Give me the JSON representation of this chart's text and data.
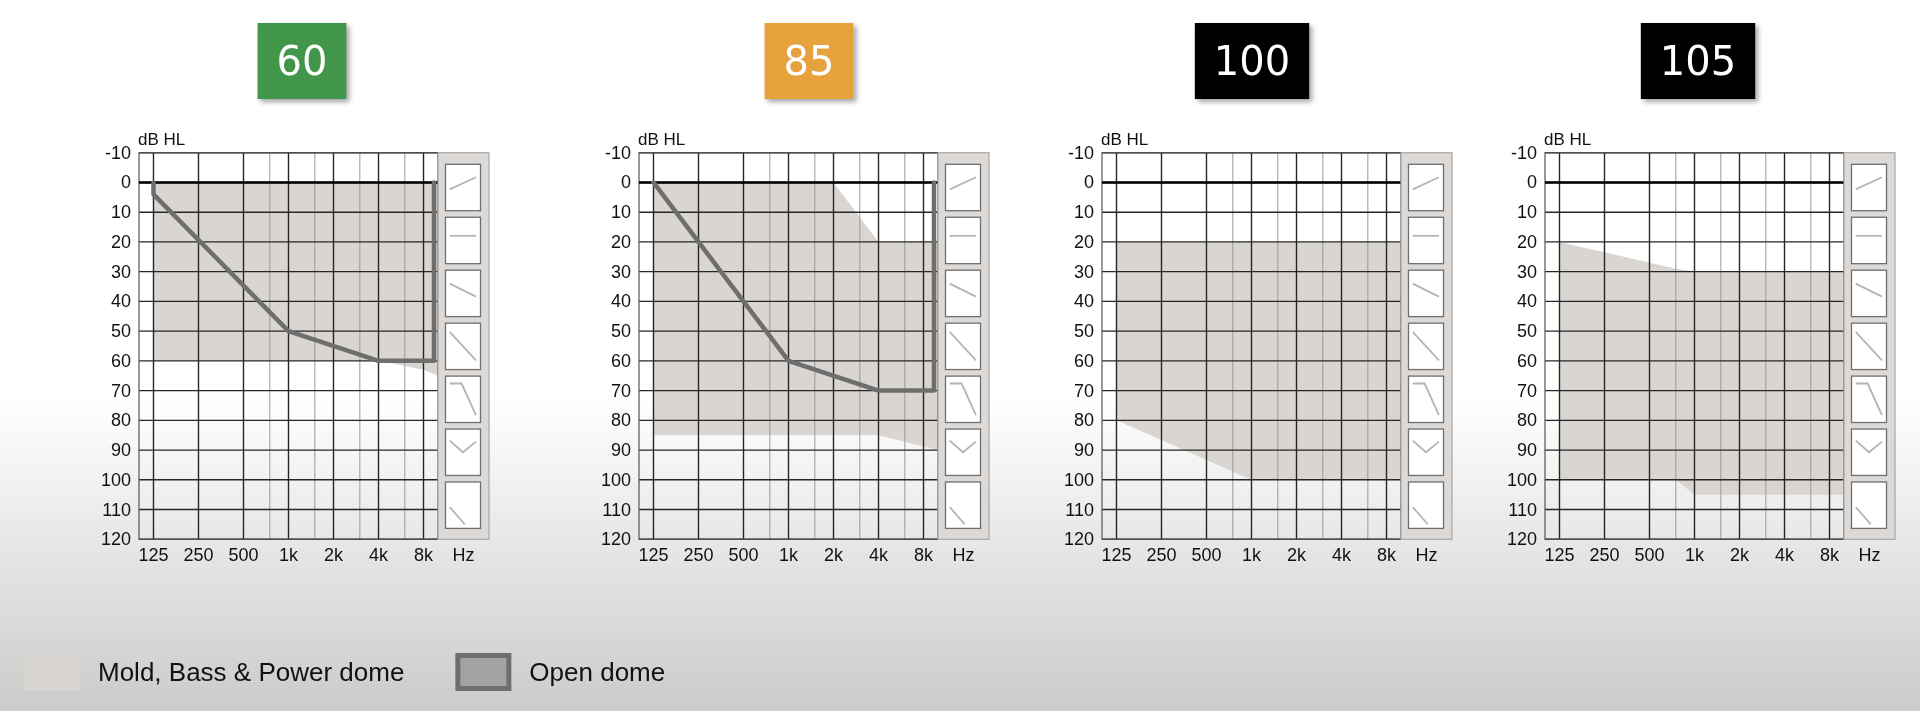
{
  "chart_data": [
    {
      "type": "area",
      "title": "60",
      "xlabel": "Hz",
      "ylabel": "dB HL",
      "log": "x",
      "xlim": [
        100,
        10000
      ],
      "xticks": [
        125,
        250,
        500,
        {
          "value": 750,
          "label": null
        },
        {
          "value": 1000,
          "label": "1k"
        },
        {
          "value": 1500,
          "label": null
        },
        {
          "value": 2000,
          "label": "2k"
        },
        {
          "value": 3000,
          "label": null
        },
        {
          "value": 4000,
          "label": "4k"
        },
        {
          "value": 6000,
          "label": null
        },
        {
          "value": 8000,
          "label": "8k"
        }
      ],
      "ylim": [
        120,
        -10
      ],
      "yticks": [
        -10,
        0,
        10,
        20,
        30,
        40,
        50,
        60,
        70,
        80,
        90,
        100,
        110,
        120
      ],
      "grid": true,
      "legend": "bottom",
      "ref_lines": [
        {
          "axis": "y",
          "value": 0,
          "color": "#000000"
        }
      ],
      "series": [
        {
          "name": "Mold, Bass & Power dome",
          "color": "#d9d5d1",
          "x": [
            125,
            4000,
            8000,
            10000
          ],
          "values": [
            null,
            null,
            null,
            null
          ],
          "lower": [
            0,
            0,
            0,
            0
          ],
          "upper": [
            60,
            60,
            63,
            65
          ]
        },
        {
          "name": "Open dome",
          "type": "line",
          "color": "#6e6e6e",
          "x": [
            125,
            125,
            1000,
            4000,
            9400,
            9400
          ],
          "values": [
            0,
            4,
            50,
            60,
            60,
            0
          ]
        }
      ]
    },
    {
      "type": "area",
      "title": "85",
      "xlabel": "Hz",
      "ylabel": "dB HL",
      "log": "x",
      "xlim": [
        100,
        10000
      ],
      "xticks": [
        125,
        250,
        500,
        {
          "value": 750,
          "label": null
        },
        {
          "value": 1000,
          "label": "1k"
        },
        {
          "value": 1500,
          "label": null
        },
        {
          "value": 2000,
          "label": "2k"
        },
        {
          "value": 3000,
          "label": null
        },
        {
          "value": 4000,
          "label": "4k"
        },
        {
          "value": 6000,
          "label": null
        },
        {
          "value": 8000,
          "label": "8k"
        }
      ],
      "ylim": [
        120,
        -10
      ],
      "yticks": [
        -10,
        0,
        10,
        20,
        30,
        40,
        50,
        60,
        70,
        80,
        90,
        100,
        110,
        120
      ],
      "grid": true,
      "ref_lines": [
        {
          "axis": "y",
          "value": 0,
          "color": "#000000"
        }
      ],
      "series": [
        {
          "color": "#d9d5d1",
          "x": [
            125,
            2000,
            4000,
            10000
          ],
          "values": [
            null,
            null,
            null,
            null
          ],
          "lower": [
            0,
            0,
            20,
            20
          ],
          "upper": [
            85,
            85,
            85,
            90
          ]
        },
        {
          "type": "line",
          "color": "#6e6e6e",
          "x": [
            125,
            1000,
            4000,
            9400,
            9400
          ],
          "values": [
            0,
            60,
            70,
            70,
            0
          ]
        }
      ]
    },
    {
      "type": "area",
      "title": "100",
      "xlabel": "Hz",
      "ylabel": "dB HL",
      "log": "x",
      "xlim": [
        100,
        10000
      ],
      "xticks": [
        125,
        250,
        500,
        {
          "value": 750,
          "label": null
        },
        {
          "value": 1000,
          "label": "1k"
        },
        {
          "value": 1500,
          "label": null
        },
        {
          "value": 2000,
          "label": "2k"
        },
        {
          "value": 3000,
          "label": null
        },
        {
          "value": 4000,
          "label": "4k"
        },
        {
          "value": 6000,
          "label": null
        },
        {
          "value": 8000,
          "label": "8k"
        }
      ],
      "ylim": [
        120,
        -10
      ],
      "yticks": [
        -10,
        0,
        10,
        20,
        30,
        40,
        50,
        60,
        70,
        80,
        90,
        100,
        110,
        120
      ],
      "grid": true,
      "ref_lines": [
        {
          "axis": "y",
          "value": 0,
          "color": "#000000"
        }
      ],
      "series": [
        {
          "color": "#d9d5d1",
          "x": [
            125,
            1000,
            10000
          ],
          "values": [
            null,
            null,
            null
          ],
          "lower": [
            20,
            20,
            20
          ],
          "upper": [
            80,
            100,
            100
          ]
        }
      ]
    },
    {
      "type": "area",
      "title": "105",
      "xlabel": "Hz",
      "ylabel": "dB HL",
      "log": "x",
      "xlim": [
        100,
        10000
      ],
      "xticks": [
        125,
        250,
        500,
        {
          "value": 750,
          "label": null
        },
        {
          "value": 1000,
          "label": "1k"
        },
        {
          "value": 1500,
          "label": null
        },
        {
          "value": 2000,
          "label": "2k"
        },
        {
          "value": 3000,
          "label": null
        },
        {
          "value": 4000,
          "label": "4k"
        },
        {
          "value": 6000,
          "label": null
        },
        {
          "value": 8000,
          "label": "8k"
        }
      ],
      "ylim": [
        120,
        -10
      ],
      "yticks": [
        -10,
        0,
        10,
        20,
        30,
        40,
        50,
        60,
        70,
        80,
        90,
        100,
        110,
        120
      ],
      "grid": true,
      "ref_lines": [
        {
          "axis": "y",
          "value": 0,
          "color": "#000000"
        }
      ],
      "series": [
        {
          "color": "#d9d5d1",
          "x": [
            125,
            750,
            1000,
            10000
          ],
          "values": [
            null,
            null,
            null,
            null
          ],
          "lower": [
            20,
            29,
            30,
            30
          ],
          "upper": [
            100,
            100,
            105,
            105
          ]
        }
      ]
    }
  ]
}
